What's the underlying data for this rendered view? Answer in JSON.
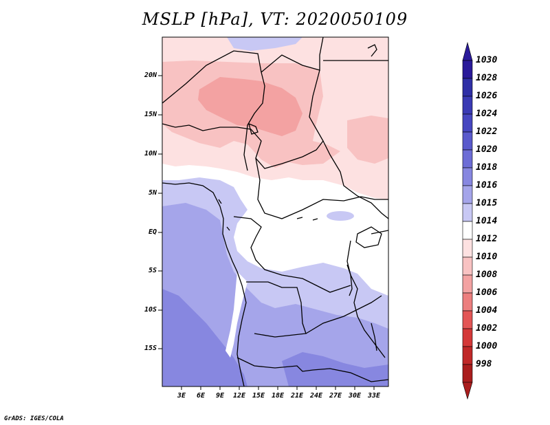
{
  "title": "MSLP [hPa], VT: 2020050109",
  "footer": "GrADS: IGES/COLA",
  "map": {
    "lat_labels": [
      "20N",
      "15N",
      "10N",
      "5N",
      "EQ",
      "5S",
      "10S",
      "15S"
    ],
    "lon_labels": [
      "3E",
      "6E",
      "9E",
      "12E",
      "15E",
      "18E",
      "21E",
      "24E",
      "27E",
      "30E",
      "33E"
    ]
  },
  "colorbar": {
    "labels": [
      "1030",
      "1028",
      "1026",
      "1024",
      "1022",
      "1020",
      "1018",
      "1016",
      "1015",
      "1014",
      "1012",
      "1010",
      "1008",
      "1006",
      "1004",
      "1002",
      "1000",
      "998"
    ],
    "colors": [
      "#2a1a9a",
      "#2f2fa6",
      "#3a3ab4",
      "#4646c0",
      "#5a5acc",
      "#6d6dd6",
      "#8787e0",
      "#a5a5ea",
      "#c8c8f4",
      "#ffffff",
      "#fde1e1",
      "#f8c2c2",
      "#f3a2a2",
      "#ec7e7e",
      "#e35656",
      "#d43838",
      "#c02828",
      "#aa1d1d"
    ],
    "top_arrow_color": "#2a1a9a",
    "bottom_arrow_color": "#aa1d1d"
  }
}
